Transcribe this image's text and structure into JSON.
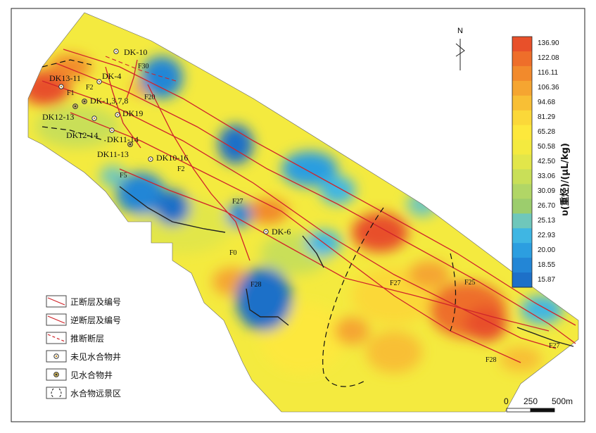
{
  "colorbar": {
    "title": "υ(重烃)/(μL/kg)",
    "ticks": [
      "136.90",
      "122.08",
      "116.11",
      "106.36",
      "94.68",
      "81.29",
      "65.28",
      "50.58",
      "42.50",
      "33.06",
      "30.09",
      "26.70",
      "25.13",
      "22.93",
      "20.00",
      "18.55",
      "15.87"
    ],
    "colors": [
      "#e8502a",
      "#ee6e2a",
      "#f28a2c",
      "#f5a531",
      "#f8bf35",
      "#fbd839",
      "#fde83c",
      "#f4ea3f",
      "#e2e64a",
      "#c9df58",
      "#b1d666",
      "#9ccd6d",
      "#6fc7bb",
      "#3fb6e3",
      "#2c9ee0",
      "#2386d6",
      "#1d70c8"
    ]
  },
  "north": {
    "letter": "N"
  },
  "wells": [
    {
      "id": "DK-10"
    },
    {
      "id": "DK13-11"
    },
    {
      "id": "DK-4"
    },
    {
      "id": "DK-1,3,7,8"
    },
    {
      "id": "DK12-13"
    },
    {
      "id": "DK19"
    },
    {
      "id": "DK12-14"
    },
    {
      "id": "DK11-14"
    },
    {
      "id": "DK11-13"
    },
    {
      "id": "DK10-16"
    },
    {
      "id": "DK-6"
    }
  ],
  "fault_labels": [
    "F30",
    "F1",
    "F2",
    "F20",
    "F5",
    "F2",
    "F27",
    "F0",
    "F28",
    "F27",
    "F25",
    "F28",
    "F27"
  ],
  "legend": [
    {
      "label": "正断层及编号",
      "icon": "normal-fault-icon"
    },
    {
      "label": "逆断层及编号",
      "icon": "reverse-fault-icon"
    },
    {
      "label": "推断断层",
      "icon": "inferred-fault-icon"
    },
    {
      "label": "未见水合物井",
      "icon": "well-no-hydrate-icon"
    },
    {
      "label": "见水合物井",
      "icon": "well-hydrate-icon"
    },
    {
      "label": "水合物远景区",
      "icon": "prospect-area-icon"
    }
  ],
  "scale": {
    "labels": [
      "0",
      "250",
      "500m"
    ]
  }
}
